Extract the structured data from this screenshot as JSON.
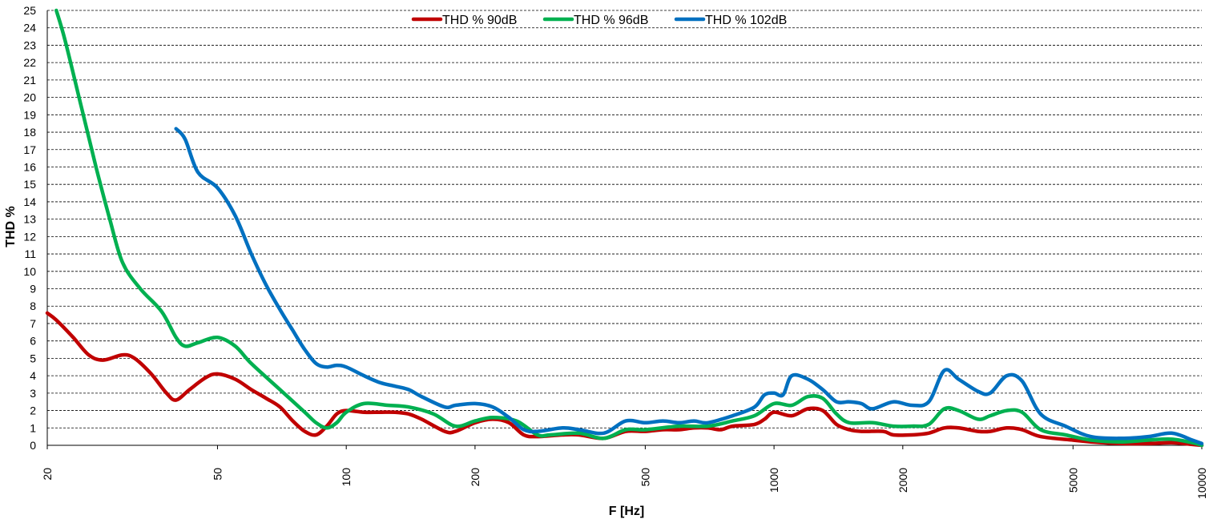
{
  "chart_data": {
    "type": "line",
    "xlabel": "F [Hz]",
    "ylabel": "THD %",
    "xscale": "log",
    "xlim": [
      20,
      10000
    ],
    "ylim": [
      0,
      25
    ],
    "grid": true,
    "legend_position": "top-center",
    "x_ticks": [
      "20",
      "50",
      "100",
      "200",
      "500",
      "1000",
      "2000",
      "5000",
      "10000"
    ],
    "y_ticks": [
      "0",
      "1",
      "2",
      "3",
      "4",
      "5",
      "6",
      "7",
      "8",
      "9",
      "10",
      "11",
      "12",
      "13",
      "14",
      "15",
      "16",
      "17",
      "18",
      "19",
      "20",
      "21",
      "22",
      "23",
      "24",
      "25"
    ],
    "series": [
      {
        "name": "THD % 90dB",
        "color": "#C00000",
        "points": [
          [
            20,
            7.6
          ],
          [
            21,
            7.2
          ],
          [
            23,
            6.2
          ],
          [
            25,
            5.2
          ],
          [
            27,
            4.9
          ],
          [
            30,
            5.2
          ],
          [
            32,
            5.0
          ],
          [
            35,
            4.1
          ],
          [
            38,
            3.0
          ],
          [
            40,
            2.6
          ],
          [
            43,
            3.2
          ],
          [
            47,
            3.9
          ],
          [
            50,
            4.1
          ],
          [
            55,
            3.8
          ],
          [
            60,
            3.2
          ],
          [
            65,
            2.7
          ],
          [
            70,
            2.2
          ],
          [
            75,
            1.4
          ],
          [
            80,
            0.8
          ],
          [
            85,
            0.6
          ],
          [
            90,
            1.1
          ],
          [
            95,
            1.8
          ],
          [
            100,
            2.0
          ],
          [
            110,
            1.9
          ],
          [
            120,
            1.9
          ],
          [
            130,
            1.9
          ],
          [
            140,
            1.8
          ],
          [
            150,
            1.5
          ],
          [
            170,
            0.8
          ],
          [
            180,
            0.8
          ],
          [
            200,
            1.3
          ],
          [
            220,
            1.5
          ],
          [
            240,
            1.3
          ],
          [
            260,
            0.6
          ],
          [
            280,
            0.5
          ],
          [
            320,
            0.6
          ],
          [
            350,
            0.6
          ],
          [
            400,
            0.4
          ],
          [
            450,
            0.8
          ],
          [
            500,
            0.8
          ],
          [
            550,
            0.9
          ],
          [
            600,
            0.9
          ],
          [
            650,
            1.0
          ],
          [
            700,
            1.0
          ],
          [
            750,
            0.9
          ],
          [
            800,
            1.1
          ],
          [
            900,
            1.2
          ],
          [
            950,
            1.5
          ],
          [
            1000,
            1.9
          ],
          [
            1100,
            1.7
          ],
          [
            1200,
            2.1
          ],
          [
            1300,
            2.0
          ],
          [
            1400,
            1.2
          ],
          [
            1500,
            0.9
          ],
          [
            1600,
            0.8
          ],
          [
            1800,
            0.8
          ],
          [
            1900,
            0.6
          ],
          [
            2100,
            0.6
          ],
          [
            2300,
            0.7
          ],
          [
            2500,
            1.0
          ],
          [
            2700,
            1.0
          ],
          [
            3000,
            0.8
          ],
          [
            3200,
            0.8
          ],
          [
            3500,
            1.0
          ],
          [
            3800,
            0.9
          ],
          [
            4200,
            0.5
          ],
          [
            5000,
            0.3
          ],
          [
            5500,
            0.2
          ],
          [
            6500,
            0.1
          ],
          [
            7500,
            0.1
          ],
          [
            8500,
            0.15
          ],
          [
            9500,
            0.05
          ],
          [
            10000,
            0.0
          ]
        ]
      },
      {
        "name": "THD % 96dB",
        "color": "#00B050",
        "points": [
          [
            21,
            25.0
          ],
          [
            22,
            23.3
          ],
          [
            24,
            19.5
          ],
          [
            26,
            16.0
          ],
          [
            28,
            13.0
          ],
          [
            30,
            10.5
          ],
          [
            33,
            9.0
          ],
          [
            37,
            7.7
          ],
          [
            40,
            6.2
          ],
          [
            42,
            5.7
          ],
          [
            45,
            5.9
          ],
          [
            50,
            6.2
          ],
          [
            55,
            5.7
          ],
          [
            60,
            4.7
          ],
          [
            70,
            3.2
          ],
          [
            80,
            1.9
          ],
          [
            85,
            1.3
          ],
          [
            90,
            1.0
          ],
          [
            95,
            1.3
          ],
          [
            100,
            1.9
          ],
          [
            110,
            2.4
          ],
          [
            125,
            2.3
          ],
          [
            140,
            2.2
          ],
          [
            160,
            1.8
          ],
          [
            180,
            1.1
          ],
          [
            200,
            1.4
          ],
          [
            220,
            1.6
          ],
          [
            250,
            1.4
          ],
          [
            280,
            0.6
          ],
          [
            300,
            0.6
          ],
          [
            350,
            0.7
          ],
          [
            400,
            0.4
          ],
          [
            450,
            0.9
          ],
          [
            500,
            0.9
          ],
          [
            600,
            1.1
          ],
          [
            700,
            1.1
          ],
          [
            800,
            1.4
          ],
          [
            900,
            1.7
          ],
          [
            1000,
            2.4
          ],
          [
            1100,
            2.3
          ],
          [
            1200,
            2.8
          ],
          [
            1300,
            2.7
          ],
          [
            1400,
            1.8
          ],
          [
            1500,
            1.3
          ],
          [
            1700,
            1.3
          ],
          [
            1900,
            1.1
          ],
          [
            2100,
            1.1
          ],
          [
            2300,
            1.2
          ],
          [
            2500,
            2.1
          ],
          [
            2700,
            2.0
          ],
          [
            3000,
            1.5
          ],
          [
            3200,
            1.7
          ],
          [
            3500,
            2.0
          ],
          [
            3800,
            1.9
          ],
          [
            4200,
            0.9
          ],
          [
            4800,
            0.6
          ],
          [
            5500,
            0.3
          ],
          [
            6500,
            0.2
          ],
          [
            7500,
            0.3
          ],
          [
            8500,
            0.35
          ],
          [
            9500,
            0.15
          ],
          [
            10000,
            0.0
          ]
        ]
      },
      {
        "name": "THD % 102dB",
        "color": "#0070C0",
        "points": [
          [
            40,
            18.2
          ],
          [
            42,
            17.6
          ],
          [
            45,
            15.7
          ],
          [
            50,
            14.8
          ],
          [
            55,
            13.2
          ],
          [
            60,
            11.0
          ],
          [
            65,
            9.2
          ],
          [
            70,
            7.8
          ],
          [
            75,
            6.6
          ],
          [
            80,
            5.5
          ],
          [
            85,
            4.7
          ],
          [
            90,
            4.5
          ],
          [
            95,
            4.6
          ],
          [
            100,
            4.5
          ],
          [
            110,
            4.0
          ],
          [
            120,
            3.6
          ],
          [
            130,
            3.4
          ],
          [
            140,
            3.2
          ],
          [
            150,
            2.8
          ],
          [
            170,
            2.2
          ],
          [
            180,
            2.3
          ],
          [
            200,
            2.4
          ],
          [
            220,
            2.2
          ],
          [
            240,
            1.6
          ],
          [
            260,
            0.9
          ],
          [
            280,
            0.8
          ],
          [
            320,
            1.0
          ],
          [
            350,
            0.9
          ],
          [
            400,
            0.7
          ],
          [
            450,
            1.4
          ],
          [
            500,
            1.3
          ],
          [
            550,
            1.4
          ],
          [
            600,
            1.3
          ],
          [
            650,
            1.4
          ],
          [
            700,
            1.3
          ],
          [
            800,
            1.7
          ],
          [
            900,
            2.2
          ],
          [
            950,
            2.9
          ],
          [
            1000,
            3.0
          ],
          [
            1050,
            2.9
          ],
          [
            1100,
            4.0
          ],
          [
            1200,
            3.8
          ],
          [
            1300,
            3.2
          ],
          [
            1400,
            2.5
          ],
          [
            1500,
            2.5
          ],
          [
            1600,
            2.4
          ],
          [
            1700,
            2.1
          ],
          [
            1900,
            2.5
          ],
          [
            2100,
            2.3
          ],
          [
            2300,
            2.5
          ],
          [
            2500,
            4.3
          ],
          [
            2700,
            3.8
          ],
          [
            3000,
            3.1
          ],
          [
            3200,
            3.0
          ],
          [
            3500,
            4.0
          ],
          [
            3800,
            3.7
          ],
          [
            4200,
            1.8
          ],
          [
            4800,
            1.1
          ],
          [
            5500,
            0.5
          ],
          [
            6500,
            0.4
          ],
          [
            7500,
            0.5
          ],
          [
            8500,
            0.7
          ],
          [
            9500,
            0.3
          ],
          [
            10000,
            0.1
          ]
        ]
      }
    ]
  }
}
